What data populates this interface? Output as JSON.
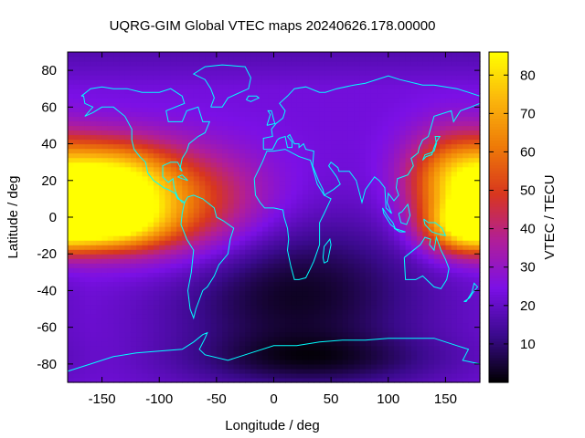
{
  "chart_data": {
    "type": "heatmap",
    "title": "UQRG-GIM Global VTEC maps 20240626.178.00000",
    "xlabel": "Longitude / deg",
    "ylabel": "Latitude / deg",
    "colorbar_label": "VTEC / TECU",
    "xlim": [
      -180,
      180
    ],
    "ylim": [
      -90,
      90
    ],
    "x_ticks": [
      -150,
      -100,
      -50,
      0,
      50,
      100,
      150
    ],
    "y_ticks": [
      -80,
      -60,
      -40,
      -20,
      0,
      20,
      40,
      60,
      80
    ],
    "colorbar_range": [
      0,
      86
    ],
    "colorbar_ticks": [
      10,
      20,
      30,
      40,
      50,
      60,
      70,
      80
    ],
    "colormap": [
      "#000000",
      "#3a0a8c",
      "#7b10e6",
      "#b01e9a",
      "#d8361e",
      "#ee7a08",
      "#fbb60c",
      "#ffff00"
    ],
    "grid_resolution_deg": {
      "lon": 5,
      "lat": 2.5
    },
    "vtec_features": [
      {
        "lon": -145,
        "lat": 20,
        "amplitude": 52,
        "sigma_lon": 38,
        "sigma_lat": 15
      },
      {
        "lon": -148,
        "lat": -4,
        "amplitude": 50,
        "sigma_lon": 36,
        "sigma_lat": 10
      },
      {
        "lon": -88,
        "lat": 8,
        "amplitude": 34,
        "sigma_lon": 55,
        "sigma_lat": 20
      },
      {
        "lon": 158,
        "lat": 20,
        "amplitude": 42,
        "sigma_lon": 30,
        "sigma_lat": 18
      },
      {
        "lon": 165,
        "lat": -6,
        "amplitude": 38,
        "sigma_lon": 24,
        "sigma_lat": 10
      },
      {
        "lon": 20,
        "lat": -42,
        "amplitude": -20,
        "sigma_lon": 80,
        "sigma_lat": 30
      },
      {
        "lon": 40,
        "lat": -78,
        "amplitude": -12,
        "sigma_lon": 80,
        "sigma_lat": 10
      }
    ],
    "background_vtec": 23,
    "coastline_color": "#00ffff"
  }
}
